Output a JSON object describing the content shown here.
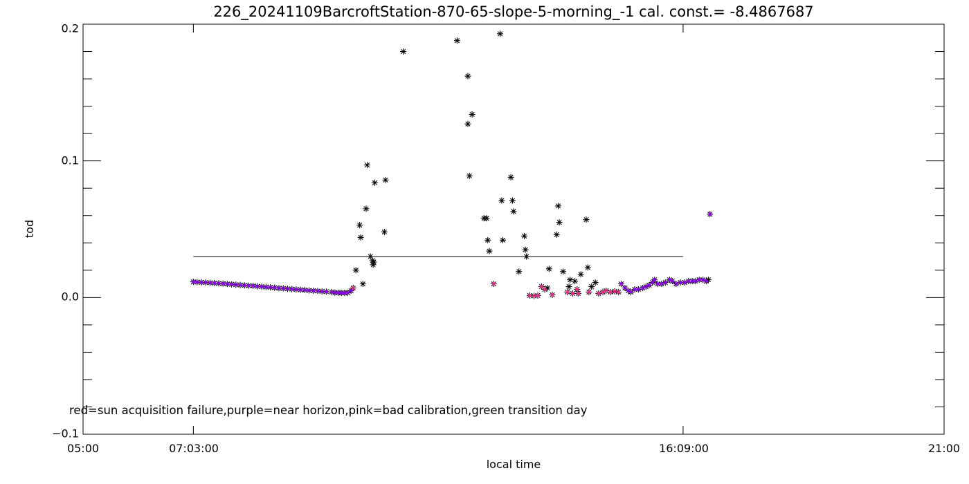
{
  "chart_data": {
    "type": "scatter",
    "title": "226_20241109BarcroftStation-870-65-slope-5-morning_-1 cal. const.= -8.4867687",
    "xlabel": "local time",
    "ylabel": "tod",
    "xlim": [
      5,
      21
    ],
    "ylim": [
      -0.1,
      0.2
    ],
    "x_tick_labels": [
      {
        "x": 5,
        "label": "05:00"
      },
      {
        "x": 7.05,
        "label": "07:03:00"
      },
      {
        "x": 16.15,
        "label": "16:09:00"
      },
      {
        "x": 21,
        "label": "21:00"
      }
    ],
    "y_ticks": [
      -0.1,
      0.0,
      0.1,
      0.2
    ],
    "y_tick_labels": [
      "−0.1",
      "0.0",
      "0.1",
      "0.2"
    ],
    "reference_line": {
      "x_start": 7.05,
      "x_end": 16.15,
      "y": 0.03
    },
    "annotation": "red=sun acquisition failure,purple=near horizon,pink=bad calibration,green transition day",
    "colors": {
      "axis": "#000000",
      "point": "#000000",
      "purple": "#9900ff",
      "pink": "#ff3399"
    },
    "series": [
      {
        "marker": "asterisk",
        "color": "#000000",
        "points": [
          [
            7.05,
            0.0115
          ],
          [
            7.12,
            0.0113
          ],
          [
            7.2,
            0.0111
          ],
          [
            7.28,
            0.011
          ],
          [
            7.36,
            0.0108
          ],
          [
            7.44,
            0.0106
          ],
          [
            7.52,
            0.0104
          ],
          [
            7.6,
            0.0102
          ],
          [
            7.68,
            0.0099
          ],
          [
            7.76,
            0.0097
          ],
          [
            7.84,
            0.0094
          ],
          [
            7.92,
            0.0092
          ],
          [
            8.0,
            0.0089
          ],
          [
            8.08,
            0.0087
          ],
          [
            8.16,
            0.0085
          ],
          [
            8.24,
            0.0082
          ],
          [
            8.32,
            0.008
          ],
          [
            8.4,
            0.0077
          ],
          [
            8.48,
            0.0075
          ],
          [
            8.56,
            0.0072
          ],
          [
            8.64,
            0.0069
          ],
          [
            8.72,
            0.0067
          ],
          [
            8.8,
            0.0064
          ],
          [
            8.88,
            0.0062
          ],
          [
            8.96,
            0.0059
          ],
          [
            9.04,
            0.0057
          ],
          [
            9.12,
            0.0055
          ],
          [
            9.2,
            0.0052
          ],
          [
            9.28,
            0.005
          ],
          [
            9.36,
            0.0048
          ],
          [
            9.44,
            0.0045
          ],
          [
            9.52,
            0.0043
          ],
          [
            9.62,
            0.004
          ],
          [
            9.68,
            0.0036
          ],
          [
            9.74,
            0.0035
          ],
          [
            9.8,
            0.0034
          ],
          [
            9.86,
            0.0034
          ],
          [
            9.92,
            0.0035
          ],
          [
            9.98,
            0.005
          ],
          [
            10.02,
            0.007
          ],
          [
            10.07,
            0.02
          ],
          [
            10.14,
            0.053
          ],
          [
            10.16,
            0.044
          ],
          [
            10.2,
            0.01
          ],
          [
            10.26,
            0.065
          ],
          [
            10.28,
            0.097
          ],
          [
            10.34,
            0.03
          ],
          [
            10.38,
            0.027
          ],
          [
            10.39,
            0.024
          ],
          [
            10.4,
            0.026
          ],
          [
            10.42,
            0.084
          ],
          [
            10.6,
            0.048
          ],
          [
            10.62,
            0.086
          ],
          [
            10.95,
            0.18
          ],
          [
            11.95,
            0.188
          ],
          [
            12.15,
            0.162
          ],
          [
            12.15,
            0.127
          ],
          [
            12.18,
            0.089
          ],
          [
            12.23,
            0.134
          ],
          [
            12.45,
            0.058
          ],
          [
            12.5,
            0.058
          ],
          [
            12.52,
            0.042
          ],
          [
            12.55,
            0.034
          ],
          [
            12.63,
            0.01
          ],
          [
            12.75,
            0.193
          ],
          [
            12.78,
            0.071
          ],
          [
            12.8,
            0.042
          ],
          [
            12.95,
            0.088
          ],
          [
            12.98,
            0.071
          ],
          [
            13.0,
            0.063
          ],
          [
            13.1,
            0.019
          ],
          [
            13.2,
            0.045
          ],
          [
            13.22,
            0.035
          ],
          [
            13.24,
            0.03
          ],
          [
            13.3,
            0.0015
          ],
          [
            13.38,
            0.0012
          ],
          [
            13.45,
            0.0015
          ],
          [
            13.52,
            0.008
          ],
          [
            13.58,
            0.006
          ],
          [
            13.63,
            0.007
          ],
          [
            13.66,
            0.021
          ],
          [
            13.72,
            0.002
          ],
          [
            13.8,
            0.046
          ],
          [
            13.83,
            0.067
          ],
          [
            13.85,
            0.055
          ],
          [
            13.92,
            0.019
          ],
          [
            14.0,
            0.004
          ],
          [
            14.03,
            0.008
          ],
          [
            14.05,
            0.013
          ],
          [
            14.1,
            0.003
          ],
          [
            14.14,
            0.012
          ],
          [
            14.18,
            0.006
          ],
          [
            14.2,
            0.003
          ],
          [
            14.25,
            0.017
          ],
          [
            14.35,
            0.057
          ],
          [
            14.38,
            0.022
          ],
          [
            14.4,
            0.004
          ],
          [
            14.45,
            0.008
          ],
          [
            14.52,
            0.011
          ],
          [
            14.58,
            0.003
          ],
          [
            14.66,
            0.004
          ],
          [
            14.72,
            0.005
          ],
          [
            14.8,
            0.004
          ],
          [
            14.88,
            0.0045
          ],
          [
            14.95,
            0.004
          ],
          [
            15.0,
            0.01
          ],
          [
            15.07,
            0.007
          ],
          [
            15.13,
            0.005
          ],
          [
            15.18,
            0.004
          ],
          [
            15.25,
            0.006
          ],
          [
            15.32,
            0.006
          ],
          [
            15.4,
            0.007
          ],
          [
            15.46,
            0.008
          ],
          [
            15.52,
            0.009
          ],
          [
            15.58,
            0.011
          ],
          [
            15.62,
            0.013
          ],
          [
            15.68,
            0.01
          ],
          [
            15.75,
            0.01
          ],
          [
            15.82,
            0.011
          ],
          [
            15.9,
            0.013
          ],
          [
            15.95,
            0.012
          ],
          [
            16.02,
            0.01
          ],
          [
            16.1,
            0.011
          ],
          [
            16.18,
            0.011
          ],
          [
            16.25,
            0.012
          ],
          [
            16.32,
            0.012
          ],
          [
            16.38,
            0.012
          ],
          [
            16.45,
            0.013
          ],
          [
            16.52,
            0.013
          ],
          [
            16.58,
            0.012
          ],
          [
            16.62,
            0.013
          ],
          [
            16.65,
            0.061
          ]
        ]
      },
      {
        "marker": "dot",
        "color": "#9900ff",
        "points": [
          [
            7.05,
            0.0115
          ],
          [
            7.12,
            0.0113
          ],
          [
            7.2,
            0.0111
          ],
          [
            7.28,
            0.011
          ],
          [
            7.36,
            0.0108
          ],
          [
            7.44,
            0.0106
          ],
          [
            7.52,
            0.0104
          ],
          [
            7.6,
            0.0102
          ],
          [
            7.68,
            0.0099
          ],
          [
            7.76,
            0.0097
          ],
          [
            7.84,
            0.0094
          ],
          [
            7.92,
            0.0092
          ],
          [
            8.0,
            0.0089
          ],
          [
            8.08,
            0.0087
          ],
          [
            8.16,
            0.0085
          ],
          [
            8.24,
            0.0082
          ],
          [
            8.32,
            0.008
          ],
          [
            8.4,
            0.0077
          ],
          [
            8.48,
            0.0075
          ],
          [
            8.56,
            0.0072
          ],
          [
            8.64,
            0.0069
          ],
          [
            8.72,
            0.0067
          ],
          [
            8.8,
            0.0064
          ],
          [
            8.88,
            0.0062
          ],
          [
            8.96,
            0.0059
          ],
          [
            9.04,
            0.0057
          ],
          [
            9.12,
            0.0055
          ],
          [
            9.2,
            0.0052
          ],
          [
            9.28,
            0.005
          ],
          [
            9.36,
            0.0048
          ],
          [
            9.44,
            0.0045
          ],
          [
            9.52,
            0.0043
          ],
          [
            9.62,
            0.004
          ],
          [
            9.68,
            0.0036
          ],
          [
            9.74,
            0.0035
          ],
          [
            9.8,
            0.0034
          ],
          [
            9.86,
            0.0034
          ],
          [
            9.92,
            0.0035
          ],
          [
            9.98,
            0.005
          ],
          [
            15.0,
            0.01
          ],
          [
            15.07,
            0.007
          ],
          [
            15.13,
            0.005
          ],
          [
            15.18,
            0.004
          ],
          [
            15.25,
            0.006
          ],
          [
            15.32,
            0.006
          ],
          [
            15.4,
            0.007
          ],
          [
            15.46,
            0.008
          ],
          [
            15.52,
            0.009
          ],
          [
            15.58,
            0.011
          ],
          [
            15.62,
            0.013
          ],
          [
            15.68,
            0.01
          ],
          [
            15.75,
            0.01
          ],
          [
            15.82,
            0.011
          ],
          [
            15.9,
            0.013
          ],
          [
            15.95,
            0.012
          ],
          [
            16.02,
            0.01
          ],
          [
            16.1,
            0.011
          ],
          [
            16.18,
            0.011
          ],
          [
            16.25,
            0.012
          ],
          [
            16.32,
            0.012
          ],
          [
            16.38,
            0.012
          ],
          [
            16.45,
            0.013
          ],
          [
            16.52,
            0.013
          ],
          [
            16.58,
            0.012
          ],
          [
            16.65,
            0.061
          ]
        ]
      },
      {
        "marker": "dot",
        "color": "#ff3399",
        "points": [
          [
            10.02,
            0.007
          ],
          [
            12.63,
            0.01
          ],
          [
            13.3,
            0.0015
          ],
          [
            13.38,
            0.0012
          ],
          [
            13.45,
            0.0015
          ],
          [
            13.52,
            0.008
          ],
          [
            13.58,
            0.006
          ],
          [
            13.72,
            0.002
          ],
          [
            14.0,
            0.004
          ],
          [
            14.1,
            0.003
          ],
          [
            14.18,
            0.006
          ],
          [
            14.2,
            0.003
          ],
          [
            14.4,
            0.004
          ],
          [
            14.58,
            0.003
          ],
          [
            14.66,
            0.004
          ],
          [
            14.72,
            0.005
          ],
          [
            14.8,
            0.004
          ],
          [
            14.88,
            0.0045
          ],
          [
            14.95,
            0.004
          ]
        ]
      }
    ]
  }
}
